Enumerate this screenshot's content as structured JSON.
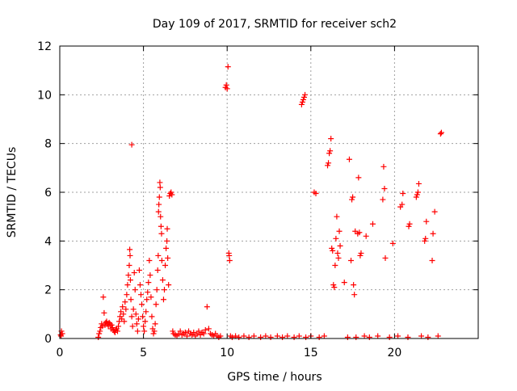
{
  "chart_data": {
    "type": "scatter",
    "title": "Day 109 of 2017, SRMTID for receiver sch2",
    "xlabel": "GPS time / hours",
    "ylabel": "SRMTID / TECUs",
    "xlim": [
      0,
      25
    ],
    "ylim": [
      0,
      12
    ],
    "xticks": [
      0,
      5,
      10,
      15,
      20
    ],
    "yticks": [
      0,
      2,
      4,
      6,
      8,
      10,
      12
    ],
    "grid": true,
    "marker": "+",
    "color": "#ff0000",
    "series": [
      {
        "points": [
          [
            0.05,
            0.15
          ],
          [
            0.1,
            0.3
          ],
          [
            0.15,
            0.2
          ],
          [
            0.08,
            0.1
          ],
          [
            2.3,
            0.05
          ],
          [
            2.35,
            0.2
          ],
          [
            2.4,
            0.3
          ],
          [
            2.45,
            0.45
          ],
          [
            2.5,
            0.6
          ],
          [
            2.55,
            0.5
          ],
          [
            2.6,
            1.7
          ],
          [
            2.65,
            1.05
          ],
          [
            2.7,
            0.55
          ],
          [
            2.75,
            0.65
          ],
          [
            2.8,
            0.7
          ],
          [
            2.85,
            0.6
          ],
          [
            2.9,
            0.5
          ],
          [
            2.95,
            0.65
          ],
          [
            3.0,
            0.6
          ],
          [
            3.05,
            0.4
          ],
          [
            3.1,
            0.55
          ],
          [
            3.15,
            0.45
          ],
          [
            3.2,
            0.35
          ],
          [
            3.25,
            0.3
          ],
          [
            3.3,
            0.25
          ],
          [
            3.35,
            0.35
          ],
          [
            3.4,
            0.4
          ],
          [
            3.45,
            0.3
          ],
          [
            3.5,
            0.5
          ],
          [
            3.55,
            0.7
          ],
          [
            3.6,
            0.9
          ],
          [
            3.65,
            1.1
          ],
          [
            3.7,
            0.8
          ],
          [
            3.75,
            1.3
          ],
          [
            3.8,
            1.0
          ],
          [
            3.85,
            0.7
          ],
          [
            3.9,
            1.5
          ],
          [
            3.95,
            1.2
          ],
          [
            4.0,
            1.8
          ],
          [
            4.05,
            2.2
          ],
          [
            4.1,
            2.6
          ],
          [
            4.15,
            3.0
          ],
          [
            4.2,
            3.4
          ],
          [
            4.18,
            3.65
          ],
          [
            4.22,
            2.4
          ],
          [
            4.25,
            1.6
          ],
          [
            4.3,
            0.9
          ],
          [
            4.3,
            7.95
          ],
          [
            4.35,
            0.5
          ],
          [
            4.4,
            1.2
          ],
          [
            4.45,
            2.7
          ],
          [
            4.5,
            2.0
          ],
          [
            4.55,
            1.0
          ],
          [
            4.6,
            0.6
          ],
          [
            4.65,
            0.3
          ],
          [
            4.7,
            0.8
          ],
          [
            4.75,
            2.8
          ],
          [
            4.8,
            2.2
          ],
          [
            4.85,
            1.8
          ],
          [
            4.9,
            1.4
          ],
          [
            4.95,
            0.9
          ],
          [
            5.0,
            0.5
          ],
          [
            5.05,
            0.3
          ],
          [
            5.1,
            0.7
          ],
          [
            5.15,
            1.1
          ],
          [
            5.2,
            1.6
          ],
          [
            5.25,
            1.9
          ],
          [
            5.3,
            2.3
          ],
          [
            5.35,
            3.2
          ],
          [
            5.4,
            2.6
          ],
          [
            5.45,
            1.7
          ],
          [
            5.5,
            0.9
          ],
          [
            5.55,
            0.4
          ],
          [
            5.6,
            0.2
          ],
          [
            5.65,
            0.3
          ],
          [
            5.7,
            0.6
          ],
          [
            5.75,
            1.4
          ],
          [
            5.8,
            2.0
          ],
          [
            5.85,
            2.8
          ],
          [
            5.88,
            3.4
          ],
          [
            5.9,
            5.2
          ],
          [
            5.92,
            5.5
          ],
          [
            5.95,
            5.8
          ],
          [
            5.98,
            6.4
          ],
          [
            6.0,
            6.2
          ],
          [
            6.02,
            5.0
          ],
          [
            6.05,
            4.6
          ],
          [
            6.08,
            4.3
          ],
          [
            6.1,
            3.2
          ],
          [
            6.15,
            2.4
          ],
          [
            6.2,
            1.6
          ],
          [
            6.25,
            2.0
          ],
          [
            6.3,
            3.0
          ],
          [
            6.35,
            3.7
          ],
          [
            6.4,
            4.0
          ],
          [
            6.42,
            4.5
          ],
          [
            6.45,
            3.3
          ],
          [
            6.5,
            2.2
          ],
          [
            6.55,
            5.85
          ],
          [
            6.6,
            5.95
          ],
          [
            6.65,
            6.0
          ],
          [
            6.7,
            5.9
          ],
          [
            6.75,
            0.3
          ],
          [
            6.8,
            0.2
          ],
          [
            6.9,
            0.15
          ],
          [
            7.0,
            0.1
          ],
          [
            7.1,
            0.2
          ],
          [
            7.2,
            0.3
          ],
          [
            7.3,
            0.15
          ],
          [
            7.4,
            0.2
          ],
          [
            7.5,
            0.25
          ],
          [
            7.6,
            0.1
          ],
          [
            7.7,
            0.3
          ],
          [
            7.8,
            0.2
          ],
          [
            7.9,
            0.15
          ],
          [
            8.0,
            0.25
          ],
          [
            8.1,
            0.1
          ],
          [
            8.2,
            0.2
          ],
          [
            8.3,
            0.3
          ],
          [
            8.4,
            0.15
          ],
          [
            8.5,
            0.25
          ],
          [
            8.6,
            0.2
          ],
          [
            8.7,
            0.35
          ],
          [
            8.8,
            1.3
          ],
          [
            8.9,
            0.4
          ],
          [
            9.0,
            0.2
          ],
          [
            9.1,
            0.15
          ],
          [
            9.2,
            0.1
          ],
          [
            9.3,
            0.2
          ],
          [
            9.4,
            0.1
          ],
          [
            9.5,
            0.05
          ],
          [
            9.6,
            0.1
          ],
          [
            9.9,
            10.3
          ],
          [
            9.95,
            10.4
          ],
          [
            10.0,
            10.25
          ],
          [
            10.05,
            11.15
          ],
          [
            10.1,
            3.5
          ],
          [
            10.12,
            3.4
          ],
          [
            10.15,
            3.2
          ],
          [
            10.2,
            0.1
          ],
          [
            10.3,
            0.05
          ],
          [
            10.5,
            0.1
          ],
          [
            10.7,
            0.05
          ],
          [
            11.0,
            0.1
          ],
          [
            11.3,
            0.05
          ],
          [
            11.6,
            0.1
          ],
          [
            12.0,
            0.05
          ],
          [
            12.3,
            0.1
          ],
          [
            12.6,
            0.05
          ],
          [
            13.0,
            0.1
          ],
          [
            13.3,
            0.05
          ],
          [
            13.6,
            0.1
          ],
          [
            14.0,
            0.05
          ],
          [
            14.3,
            0.1
          ],
          [
            14.45,
            9.6
          ],
          [
            14.5,
            9.7
          ],
          [
            14.55,
            9.8
          ],
          [
            14.6,
            9.9
          ],
          [
            14.65,
            10.0
          ],
          [
            14.7,
            0.05
          ],
          [
            15.0,
            0.1
          ],
          [
            15.2,
            6.0
          ],
          [
            15.3,
            5.95
          ],
          [
            15.5,
            0.05
          ],
          [
            15.8,
            0.1
          ],
          [
            16.0,
            7.1
          ],
          [
            16.05,
            7.2
          ],
          [
            16.1,
            7.6
          ],
          [
            16.15,
            7.7
          ],
          [
            16.2,
            8.2
          ],
          [
            16.25,
            3.7
          ],
          [
            16.3,
            3.6
          ],
          [
            16.35,
            2.2
          ],
          [
            16.4,
            2.1
          ],
          [
            16.45,
            3.0
          ],
          [
            16.5,
            4.1
          ],
          [
            16.55,
            5.0
          ],
          [
            16.6,
            3.5
          ],
          [
            16.65,
            3.3
          ],
          [
            16.7,
            4.4
          ],
          [
            16.75,
            3.8
          ],
          [
            17.0,
            2.3
          ],
          [
            17.2,
            0.05
          ],
          [
            17.3,
            7.35
          ],
          [
            17.4,
            3.2
          ],
          [
            17.45,
            5.7
          ],
          [
            17.5,
            5.8
          ],
          [
            17.55,
            2.2
          ],
          [
            17.6,
            1.8
          ],
          [
            17.65,
            4.4
          ],
          [
            17.7,
            0.05
          ],
          [
            17.8,
            4.3
          ],
          [
            17.85,
            6.6
          ],
          [
            17.9,
            4.35
          ],
          [
            17.95,
            3.4
          ],
          [
            18.0,
            3.5
          ],
          [
            18.2,
            0.1
          ],
          [
            18.3,
            4.2
          ],
          [
            18.5,
            0.05
          ],
          [
            18.7,
            4.7
          ],
          [
            19.0,
            0.1
          ],
          [
            19.3,
            5.7
          ],
          [
            19.35,
            7.05
          ],
          [
            19.4,
            6.15
          ],
          [
            19.45,
            3.3
          ],
          [
            19.7,
            0.05
          ],
          [
            19.9,
            3.9
          ],
          [
            20.2,
            0.1
          ],
          [
            20.35,
            5.4
          ],
          [
            20.45,
            5.5
          ],
          [
            20.5,
            5.95
          ],
          [
            20.8,
            0.05
          ],
          [
            20.85,
            4.6
          ],
          [
            20.9,
            4.7
          ],
          [
            21.3,
            5.8
          ],
          [
            21.35,
            5.9
          ],
          [
            21.4,
            6.0
          ],
          [
            21.45,
            6.35
          ],
          [
            21.6,
            0.1
          ],
          [
            21.8,
            4.0
          ],
          [
            21.85,
            4.1
          ],
          [
            21.9,
            4.8
          ],
          [
            22.0,
            0.05
          ],
          [
            22.25,
            3.2
          ],
          [
            22.3,
            4.3
          ],
          [
            22.4,
            5.2
          ],
          [
            22.6,
            0.1
          ],
          [
            22.75,
            8.4
          ],
          [
            22.8,
            8.45
          ]
        ]
      }
    ]
  }
}
